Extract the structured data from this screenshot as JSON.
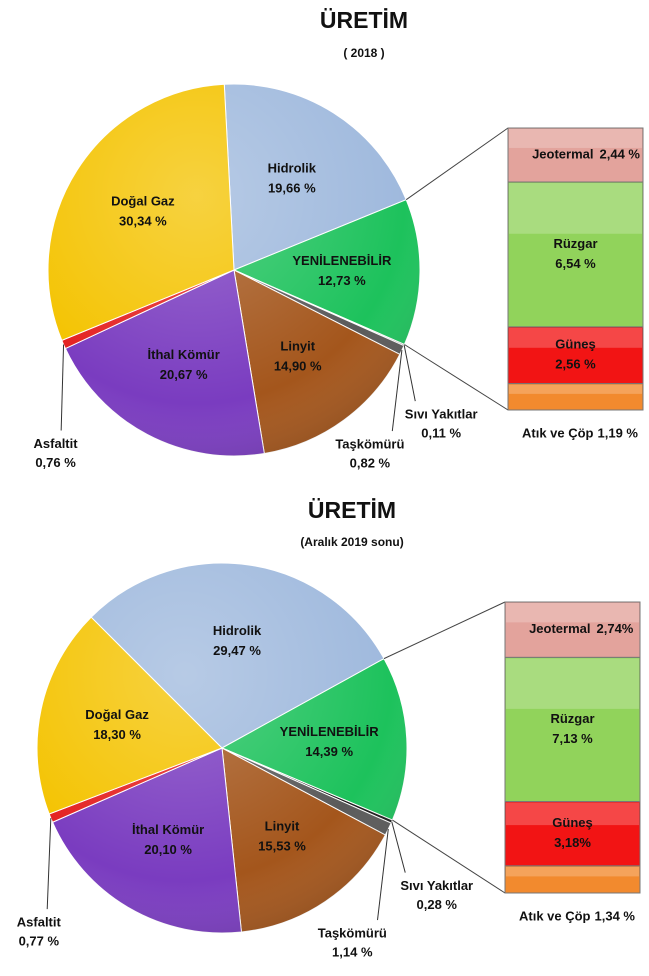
{
  "chart_data": [
    {
      "type": "pie",
      "title": "ÜRETİM",
      "subtitle": "( 2018 )",
      "categories": [
        "Hidrolik",
        "YENİLENEBİLİR",
        "Sıvı Yakıtlar",
        "Taşkömürü",
        "Linyit",
        "İthal Kömür",
        "Asfaltit",
        "Doğal Gaz"
      ],
      "values": [
        19.66,
        12.73,
        0.11,
        0.82,
        14.9,
        20.67,
        0.76,
        30.34
      ],
      "value_labels": [
        "19,66 %",
        "12,73 %",
        "0,11 %",
        "0,82 %",
        "14,90 %",
        "20,67 %",
        "0,76 %",
        "30,34 %"
      ],
      "colors": [
        "#9fb9dd",
        "#1dc25c",
        "#1a1a1a",
        "#5a5a5a",
        "#a4561c",
        "#7a3cc0",
        "#e42020",
        "#f4c300"
      ],
      "label_colors": [
        "#111111",
        "#111111",
        "#111111",
        "#111111",
        "#111111",
        "#111111",
        "#111111",
        "#111111"
      ],
      "breakdown": {
        "type": "bar",
        "categories": [
          "Jeotermal",
          "Rüzgar",
          "Güneş",
          "Atık ve Çöp"
        ],
        "values": [
          2.44,
          6.54,
          2.56,
          1.19
        ],
        "value_labels": [
          "2,44 %",
          "6,54 %",
          "2,56 %",
          "1,19 %"
        ],
        "colors": [
          "#e3a39c",
          "#91d35b",
          "#f21414",
          "#f28a2e"
        ],
        "label_colors": [
          "#111111",
          "#111111",
          "#7a0000",
          "#111111"
        ]
      }
    },
    {
      "type": "pie",
      "title": "ÜRETİM",
      "subtitle": "(Aralık 2019 sonu)",
      "categories": [
        "Hidrolik",
        "YENİLENEBİLİR",
        "Sıvı Yakıtlar",
        "Taşkömürü",
        "Linyit",
        "İthal Kömür",
        "Asfaltit",
        "Doğal Gaz"
      ],
      "values": [
        29.47,
        14.39,
        0.28,
        1.14,
        15.53,
        20.1,
        0.77,
        18.3
      ],
      "value_labels": [
        "29,47 %",
        "14,39 %",
        "0,28 %",
        "1,14 %",
        "15,53 %",
        "20,10 %",
        "0,77 %",
        "18,30 %"
      ],
      "colors": [
        "#9fb9dd",
        "#1dc25c",
        "#1a1a1a",
        "#5a5a5a",
        "#a4561c",
        "#7a3cc0",
        "#e42020",
        "#f4c300"
      ],
      "label_colors": [
        "#111111",
        "#111111",
        "#111111",
        "#111111",
        "#ffe600",
        "#ffe600",
        "#111111",
        "#111111"
      ],
      "breakdown": {
        "type": "bar",
        "categories": [
          "Jeotermal",
          "Rüzgar",
          "Güneş",
          "Atık ve Çöp"
        ],
        "values": [
          2.74,
          7.13,
          3.18,
          1.34
        ],
        "value_labels": [
          "2,74%",
          "7,13 %",
          "3,18%",
          "1,34 %"
        ],
        "colors": [
          "#e3a39c",
          "#91d35b",
          "#f21414",
          "#f28a2e"
        ],
        "label_colors": [
          "#111111",
          "#111111",
          "#7a0000",
          "#111111"
        ]
      }
    }
  ]
}
